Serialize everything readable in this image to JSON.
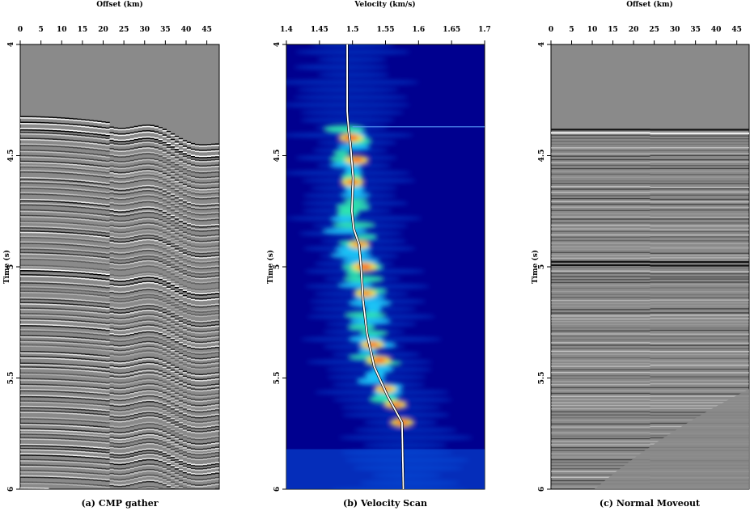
{
  "panels": [
    {
      "id": "a",
      "kind": "gather",
      "caption": "(a) CMP gather",
      "top_axis": {
        "label": "Offset (km)",
        "ticks": [
          "0",
          "5",
          "10",
          "15",
          "20",
          "25",
          "30",
          "35",
          "40",
          "45"
        ],
        "values": [
          0,
          5,
          10,
          15,
          20,
          25,
          30,
          35,
          40,
          45
        ],
        "range": [
          0,
          48
        ]
      },
      "left_axis": {
        "label": "Time (s)",
        "ticks": [
          "4",
          "4.5",
          "5",
          "5.5",
          "6"
        ],
        "values": [
          4,
          4.5,
          5,
          5.5,
          6
        ],
        "range": [
          4,
          6
        ]
      }
    },
    {
      "id": "b",
      "kind": "semblance",
      "caption": "(b) Velocity Scan",
      "top_axis": {
        "label": "Velocity (km/s)",
        "ticks": [
          "1.4",
          "1.45",
          "1.5",
          "1.55",
          "1.6",
          "1.65",
          "1.7"
        ],
        "values": [
          1.4,
          1.45,
          1.5,
          1.55,
          1.6,
          1.65,
          1.7
        ],
        "range": [
          1.4,
          1.7
        ]
      },
      "left_axis": {
        "label": "Time (s)",
        "ticks": [
          "4",
          "4.5",
          "5",
          "5.5",
          "6"
        ],
        "values": [
          4,
          4.5,
          5,
          5.5,
          6
        ],
        "range": [
          4,
          6
        ]
      }
    },
    {
      "id": "c",
      "kind": "nmo",
      "caption": "(c) Normal Moveout",
      "top_axis": {
        "label": "Offset (km)",
        "ticks": [
          "0",
          "5",
          "10",
          "15",
          "20",
          "25",
          "30",
          "35",
          "40",
          "45"
        ],
        "values": [
          0,
          5,
          10,
          15,
          20,
          25,
          30,
          35,
          40,
          45
        ],
        "range": [
          0,
          48
        ]
      },
      "left_axis": {
        "label": "Time (s)",
        "ticks": [
          "4",
          "4.5",
          "5",
          "5.5",
          "6"
        ],
        "values": [
          4,
          4.5,
          5,
          5.5,
          6
        ],
        "range": [
          4,
          6
        ]
      }
    }
  ],
  "picked_velocity": {
    "t": [
      4.0,
      4.3,
      4.38,
      4.45,
      4.6,
      4.75,
      4.83,
      4.9,
      5.0,
      5.15,
      5.3,
      5.45,
      5.58,
      5.7,
      6.0
    ],
    "v": [
      1.492,
      1.492,
      1.494,
      1.497,
      1.501,
      1.499,
      1.502,
      1.51,
      1.513,
      1.516,
      1.522,
      1.533,
      1.553,
      1.575,
      1.577
    ]
  },
  "semblance_peaks": [
    {
      "t": 4.42,
      "v": 1.498,
      "amp": 0.9
    },
    {
      "t": 4.52,
      "v": 1.506,
      "amp": 0.8
    },
    {
      "t": 4.62,
      "v": 1.5,
      "amp": 0.7
    },
    {
      "t": 4.9,
      "v": 1.51,
      "amp": 0.55
    },
    {
      "t": 5.0,
      "v": 1.518,
      "amp": 0.95
    },
    {
      "t": 5.12,
      "v": 1.52,
      "amp": 0.6
    },
    {
      "t": 5.35,
      "v": 1.53,
      "amp": 0.75
    },
    {
      "t": 5.42,
      "v": 1.54,
      "amp": 0.9
    },
    {
      "t": 5.55,
      "v": 1.55,
      "amp": 0.6
    },
    {
      "t": 5.62,
      "v": 1.565,
      "amp": 0.65
    },
    {
      "t": 5.7,
      "v": 1.575,
      "amp": 0.75
    }
  ],
  "colors": {
    "ink": "#000000",
    "curve": "#ffffff",
    "seismic_bg": "#8a8a8a",
    "semblance_bg": "#00008f"
  }
}
